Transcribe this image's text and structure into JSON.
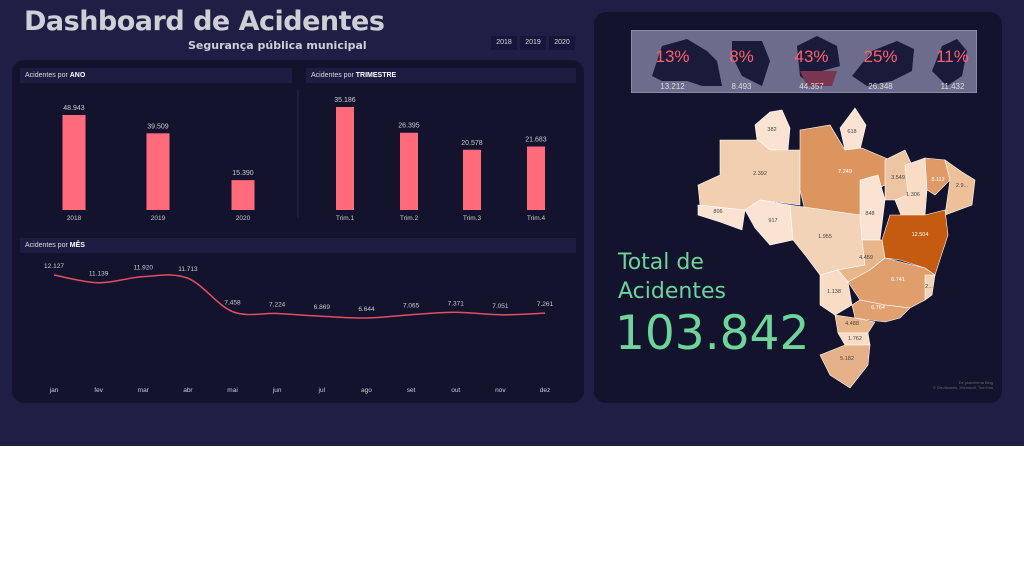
{
  "header": {
    "title": "Dashboard de Acidentes",
    "subtitle": "Segurança pública municipal",
    "year_filters": [
      "2018",
      "2019",
      "2020"
    ]
  },
  "panels": {
    "ano_prefix": "Acidentes por ",
    "ano_bold": "ANO",
    "tri_prefix": "Acidentes por ",
    "tri_bold": "TRIMESTRE",
    "mes_prefix": "Acidentes por ",
    "mes_bold": "MÊS"
  },
  "chart_data": [
    {
      "type": "bar",
      "title": "Acidentes por ANO",
      "categories": [
        "2018",
        "2019",
        "2020"
      ],
      "values": [
        48943,
        39509,
        15390
      ],
      "labels": [
        "48.943",
        "39.509",
        "15.390"
      ],
      "color": "#ff6b7a"
    },
    {
      "type": "bar",
      "title": "Acidentes por TRIMESTRE",
      "categories": [
        "Trim.1",
        "Trim.2",
        "Trim.3",
        "Trim.4"
      ],
      "values": [
        35186,
        26395,
        20578,
        21683
      ],
      "labels": [
        "35.186",
        "26.395",
        "20.578",
        "21.683"
      ],
      "color": "#ff6b7a"
    },
    {
      "type": "line",
      "title": "Acidentes por MÊS",
      "categories": [
        "jan",
        "fev",
        "mar",
        "abr",
        "mai",
        "jun",
        "jul",
        "ago",
        "set",
        "out",
        "nov",
        "dez"
      ],
      "values": [
        12127,
        11139,
        11920,
        11713,
        7458,
        7224,
        6869,
        6644,
        7065,
        7371,
        7051,
        7261
      ],
      "labels": [
        "12.127",
        "11.139",
        "11.920",
        "11.713",
        "7.458",
        "7.224",
        "6.869",
        "6.644",
        "7.065",
        "7.371",
        "7.051",
        "7.261"
      ],
      "color": "#e05060"
    }
  ],
  "regions": [
    {
      "pct": "13%",
      "value": "13.212"
    },
    {
      "pct": "8%",
      "value": "8.493"
    },
    {
      "pct": "43%",
      "value": "44.357"
    },
    {
      "pct": "25%",
      "value": "26.348"
    },
    {
      "pct": "11%",
      "value": "11.432"
    }
  ],
  "total": {
    "label_line1": "Total de",
    "label_line2": "Acidentes",
    "value": "103.842"
  },
  "map": {
    "states": [
      {
        "id": "RR",
        "label": "382",
        "color": "#fbe3d3"
      },
      {
        "id": "AP",
        "label": "618",
        "color": "#fbe3d3"
      },
      {
        "id": "AM",
        "label": "2.392",
        "color": "#f2cfb1"
      },
      {
        "id": "PA",
        "label": "7.249",
        "color": "#dd9560"
      },
      {
        "id": "AC",
        "label": "806",
        "color": "#fbe3d3"
      },
      {
        "id": "RO",
        "label": "917",
        "color": "#fbe3d3"
      },
      {
        "id": "MT",
        "label": "1.955",
        "color": "#f2d3b8"
      },
      {
        "id": "TO",
        "label": "848",
        "color": "#fbe3d3"
      },
      {
        "id": "MA",
        "label": "3.549",
        "color": "#eec5a3"
      },
      {
        "id": "PI",
        "label": "1.306",
        "color": "#f8dcc6"
      },
      {
        "id": "CE",
        "label": "8.112",
        "color": "#df9a66"
      },
      {
        "id": "NE",
        "label": "2.9...",
        "color": "#edc09a"
      },
      {
        "id": "BA",
        "label": "12.504",
        "color": "#c55a11"
      },
      {
        "id": "GO",
        "label": "4.459",
        "color": "#e9b68c"
      },
      {
        "id": "MS",
        "label": "1.138",
        "color": "#f8dcc6"
      },
      {
        "id": "MG",
        "label": "6.741",
        "color": "#df9e6c"
      },
      {
        "id": "ES",
        "label": "2...",
        "color": "#f2d3b8"
      },
      {
        "id": "SP",
        "label": "6.764",
        "color": "#e0a070"
      },
      {
        "id": "PR",
        "label": "4.488",
        "color": "#e9b68c"
      },
      {
        "id": "SC",
        "label": "1.762",
        "color": "#f8dcc6"
      },
      {
        "id": "RS",
        "label": "5.182",
        "color": "#e6b088"
      }
    ],
    "attribution_1": "De plataforma Bing",
    "attribution_2": "© GeoNames, Microsoft, TomTom"
  }
}
